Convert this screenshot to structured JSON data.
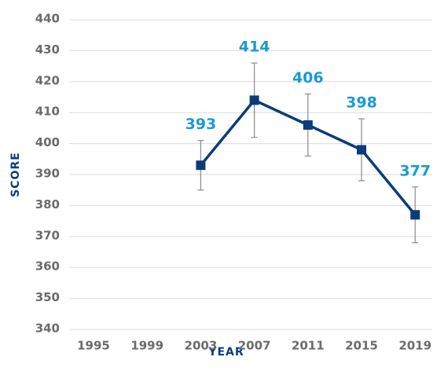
{
  "chart_data": {
    "type": "line",
    "x_label": "YEAR",
    "y_label": "SCORE",
    "categories": [
      "1995",
      "1999",
      "2003",
      "2007",
      "2011",
      "2015",
      "2019"
    ],
    "values": [
      null,
      null,
      393,
      414,
      406,
      398,
      377
    ],
    "errors": [
      null,
      null,
      8,
      12,
      10,
      10,
      9
    ],
    "color": "#0b3c7a",
    "label_color": "#1a9ad6",
    "error_color": "#8a8a8a",
    "ylim": [
      340,
      440
    ],
    "yticks": [
      340,
      350,
      360,
      370,
      380,
      390,
      400,
      410,
      420,
      430,
      440
    ],
    "grid": true
  }
}
